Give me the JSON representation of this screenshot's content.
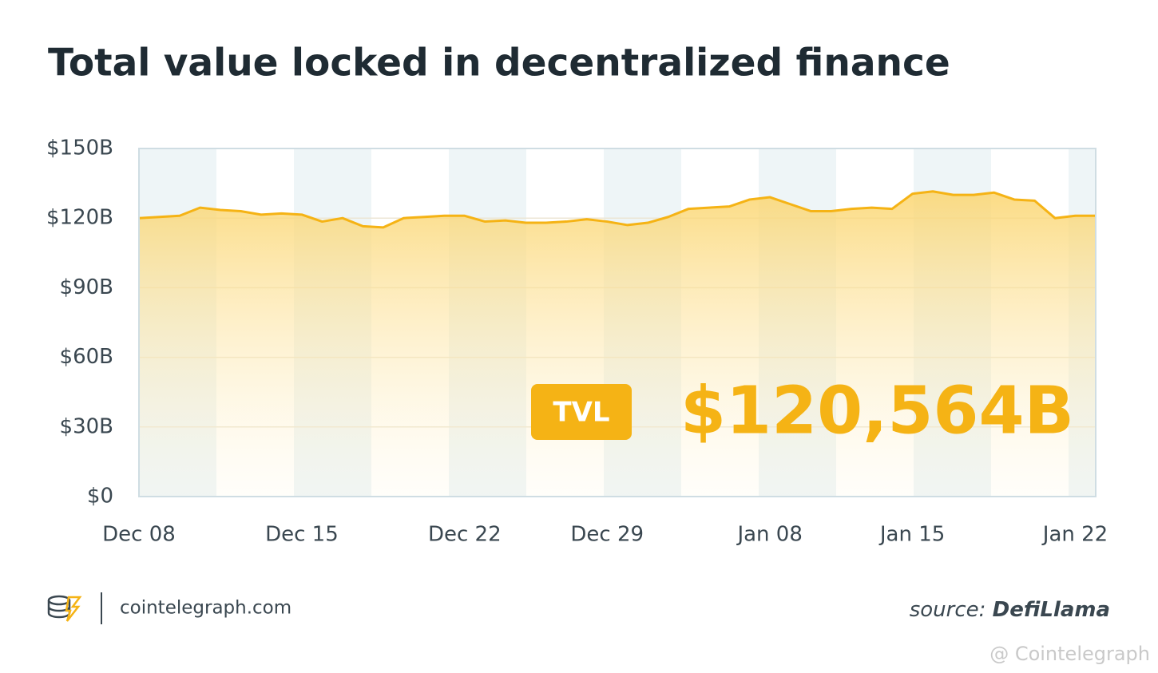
{
  "chart_data": {
    "type": "line",
    "title": "Total value locked in decentralized finance",
    "categories": [
      "Dec 08",
      null,
      null,
      null,
      null,
      null,
      null,
      null,
      "Dec 15",
      null,
      null,
      null,
      null,
      null,
      null,
      null,
      "Dec 22",
      null,
      null,
      null,
      null,
      null,
      null,
      "Dec 29",
      null,
      null,
      null,
      null,
      null,
      null,
      null,
      "Jan 08",
      null,
      null,
      null,
      null,
      null,
      null,
      "Jan 15",
      null,
      null,
      null,
      null,
      null,
      null,
      null,
      "Jan 22",
      null
    ],
    "values": [
      120,
      120.5,
      121,
      124.5,
      123.5,
      123,
      121.5,
      122,
      121.5,
      118.5,
      120,
      116.5,
      116,
      120,
      120.5,
      121,
      121,
      118.5,
      119,
      118,
      118,
      118.5,
      119.5,
      118.5,
      117,
      118,
      120.5,
      124,
      124.5,
      125,
      128,
      129,
      126,
      123,
      123,
      124,
      124.5,
      124,
      130.5,
      131.5,
      130,
      130,
      131,
      128,
      127.5,
      120,
      121,
      121
    ],
    "color": "#f5b315",
    "ylim": [
      0,
      150
    ],
    "yticks": [
      {
        "value": 0,
        "label": "$0"
      },
      {
        "value": 30,
        "label": "$30B"
      },
      {
        "value": 60,
        "label": "$60B"
      },
      {
        "value": 90,
        "label": "$90B"
      },
      {
        "value": 120,
        "label": "$120B"
      },
      {
        "value": 150,
        "label": "$150B"
      }
    ],
    "grid": true,
    "annotation": {
      "badge": "TVL",
      "text": "$120,564B"
    }
  },
  "footer": {
    "site": "cointelegraph.com",
    "source_prefix": "source:",
    "source_name": "DefiLlama",
    "watermark": "@ Cointelegraph"
  }
}
